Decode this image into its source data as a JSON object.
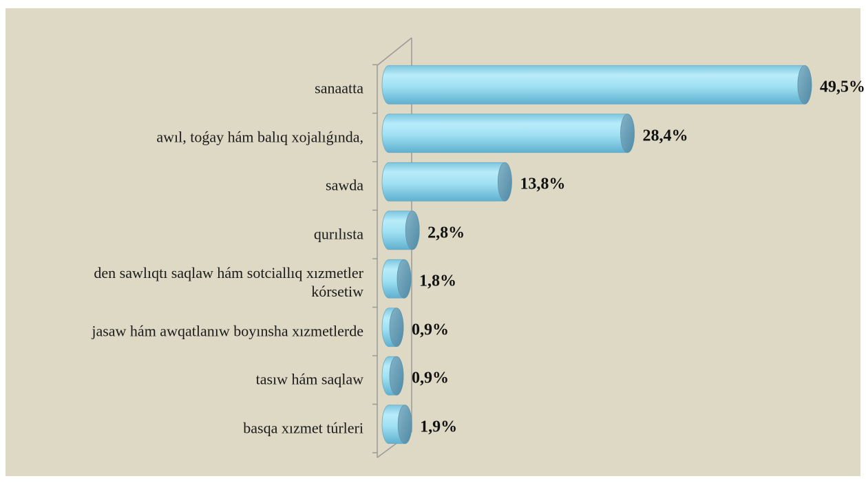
{
  "chart_data": {
    "type": "bar",
    "categories": [
      "sanaatta",
      "awıl, toǵay hám balıq xojalıǵında,",
      "sawda",
      "qurılısta",
      "den sawlıqtı saqlaw hám sotciallıq xızmetler kórsetiw",
      "jasaw hám awqatlanıw boyınsha xızmetlerde",
      "tasıw hám saqlaw",
      "basqa xızmet túrleri"
    ],
    "values": [
      49.5,
      28.4,
      13.8,
      2.8,
      1.8,
      0.9,
      0.9,
      1.9
    ],
    "value_labels": [
      "49,5%",
      "28,4%",
      "13,8%",
      "2,8%",
      "1,8%",
      "0,9%",
      "0,9%",
      "1,9%"
    ],
    "color": "#8fd6ec",
    "xlim": [
      0,
      50
    ]
  }
}
